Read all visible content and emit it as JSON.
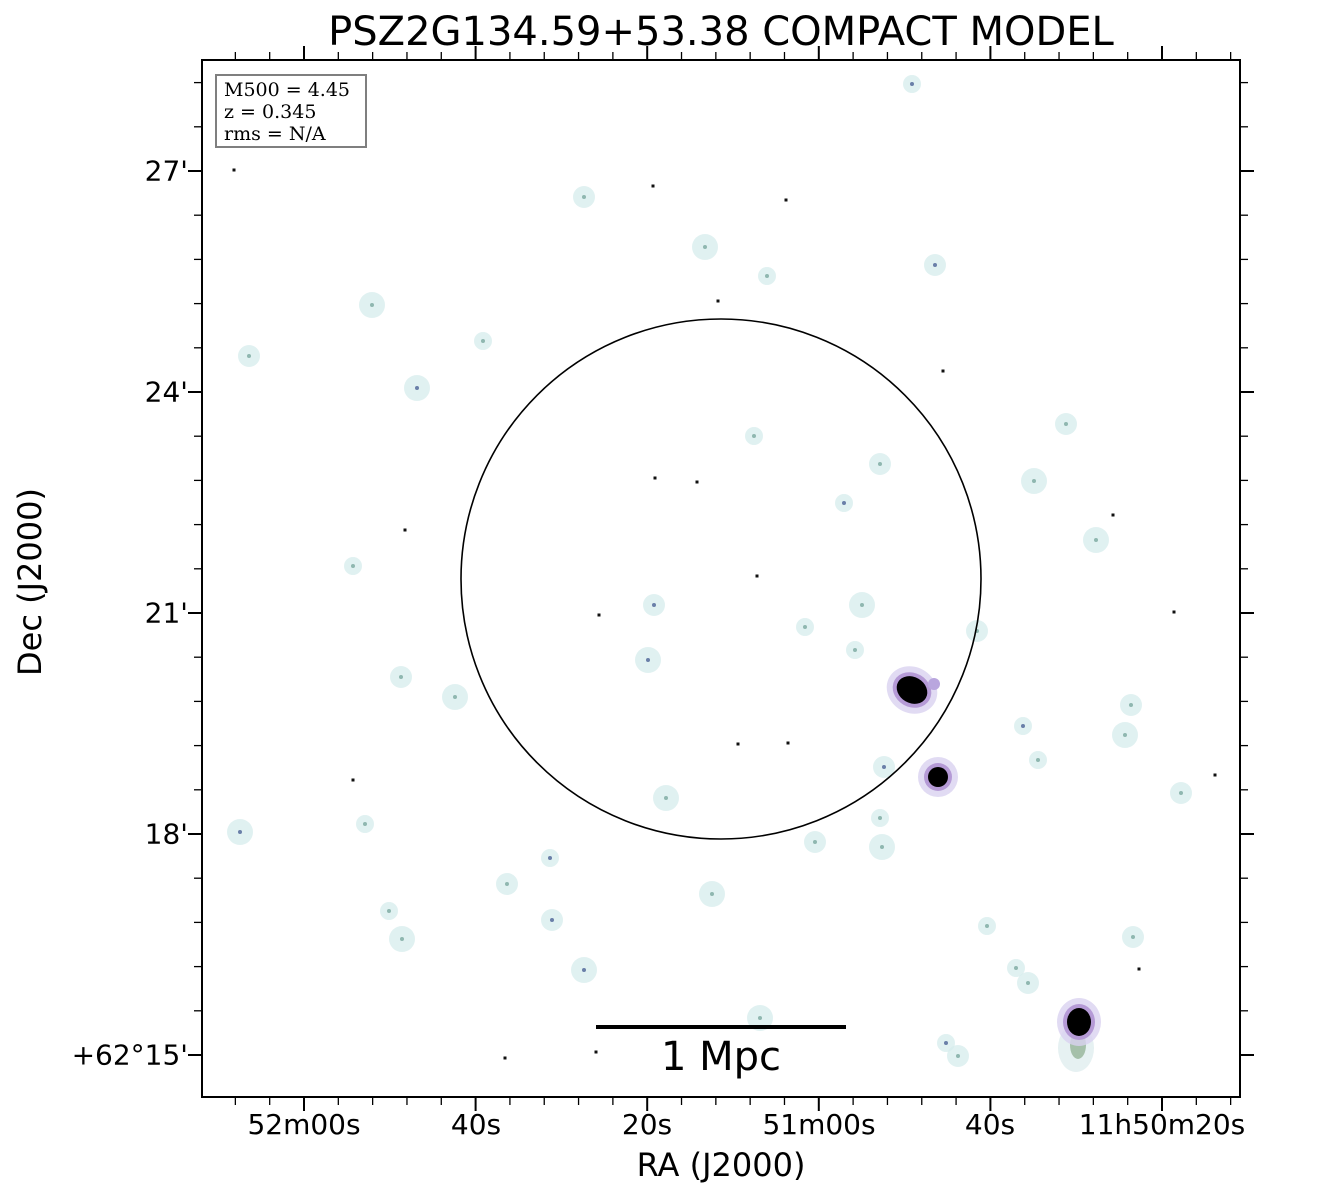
{
  "title": "PSZ2G134.59+53.38 COMPACT MODEL",
  "xlabel": "RA (J2000)",
  "ylabel": "Dec (J2000)",
  "x_ticks": [
    "52m00s",
    "40s",
    "20s",
    "51m00s",
    "40s",
    "11h50m20s"
  ],
  "y_ticks": [
    "27'",
    "24'",
    "21'",
    "18'",
    "+62°15'"
  ],
  "info": {
    "mass": "M500 = 4.45",
    "redshift": "z = 0.345",
    "rms": "rms = N/A"
  },
  "scale_bar": {
    "label": "1 Mpc"
  },
  "colors": {
    "background": "#ffffff",
    "circle": "#000000",
    "source_halo": "#cfe6e6"
  }
}
